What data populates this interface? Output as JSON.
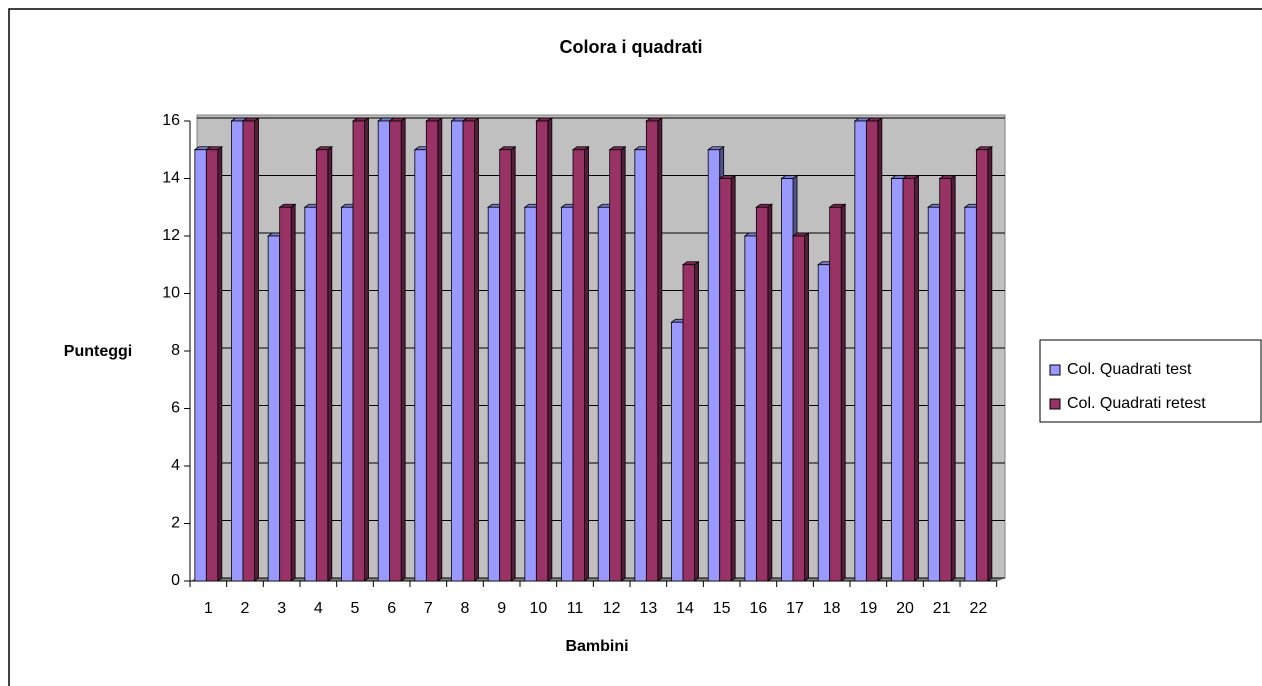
{
  "chart_data": {
    "type": "bar",
    "title": "Colora i quadrati",
    "xlabel": "Bambini",
    "ylabel": "Punteggi",
    "categories": [
      "1",
      "2",
      "3",
      "4",
      "5",
      "6",
      "7",
      "8",
      "9",
      "10",
      "11",
      "12",
      "13",
      "14",
      "15",
      "16",
      "17",
      "18",
      "19",
      "20",
      "21",
      "22"
    ],
    "series": [
      {
        "name": "Col. Quadrati test",
        "color": "#9999ff",
        "values": [
          15,
          16,
          12,
          13,
          13,
          16,
          15,
          16,
          13,
          13,
          13,
          13,
          15,
          9,
          15,
          12,
          14,
          11,
          16,
          14,
          13,
          13
        ]
      },
      {
        "name": "Col. Quadrati retest",
        "color": "#993366",
        "values": [
          15,
          16,
          13,
          15,
          16,
          16,
          16,
          16,
          15,
          16,
          15,
          15,
          16,
          11,
          14,
          13,
          12,
          13,
          16,
          14,
          14,
          15
        ]
      }
    ],
    "ylim": [
      0,
      16
    ],
    "yticks": [
      0,
      2,
      4,
      6,
      8,
      10,
      12,
      14,
      16
    ],
    "grid": true,
    "legend": "right"
  }
}
